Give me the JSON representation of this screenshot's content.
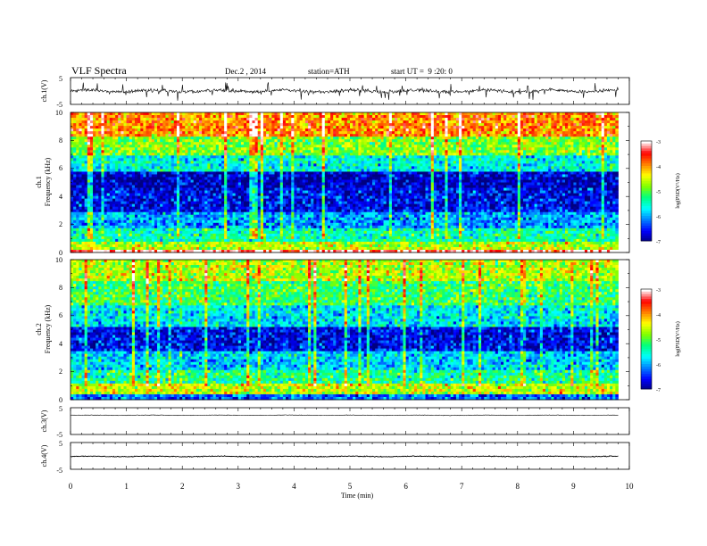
{
  "header": {
    "title": "VLF Spectra",
    "date": "Dec.2 , 2014",
    "station": "station=ATH",
    "start": "start UT =  9 :20: 0"
  },
  "chart_data": [
    {
      "type": "line",
      "panel": "ch1-waveform",
      "ylabel": "ch.1(V)",
      "ylim": [
        -5,
        5
      ],
      "ytick_labels": [
        "5",
        "-5"
      ],
      "xlim": [
        0,
        10
      ],
      "data_extent_min": 9.8,
      "signal_level_v": 0.0,
      "noise_amplitude_v": 1.0,
      "spike_amplitude_v": 3.0
    },
    {
      "type": "heatmap",
      "panel": "ch1-spectrogram",
      "ylabel": "ch.1\nFrequency (kHz)",
      "ylabel_line1": "ch.1",
      "ylabel_line2": "Frequency (kHz)",
      "ylim": [
        0,
        10
      ],
      "ytick_labels": [
        "0",
        "2",
        "4",
        "6",
        "8",
        "10"
      ],
      "xlim": [
        0,
        10
      ],
      "data_extent_min": 9.8,
      "colorbar": {
        "label": "log(PSD(V²/Hz)",
        "range": [
          -7,
          -3
        ],
        "tick_labels": [
          "-3",
          "-4",
          "-5",
          "-6",
          "-7"
        ]
      },
      "bands_khz": [
        {
          "from": 0,
          "to": 0.2,
          "log_psd": -3.2
        },
        {
          "from": 0.2,
          "to": 0.8,
          "log_psd": -4.6
        },
        {
          "from": 0.8,
          "to": 1.7,
          "log_psd": -5.4
        },
        {
          "from": 1.7,
          "to": 2.8,
          "log_psd": -6.0
        },
        {
          "from": 2.8,
          "to": 4.6,
          "log_psd": -6.6
        },
        {
          "from": 4.6,
          "to": 5.8,
          "log_psd": -6.8
        },
        {
          "from": 5.8,
          "to": 7.0,
          "log_psd": -5.6
        },
        {
          "from": 7.0,
          "to": 8.3,
          "log_psd": -4.8
        },
        {
          "from": 8.3,
          "to": 10,
          "log_psd": -3.9
        }
      ]
    },
    {
      "type": "heatmap",
      "panel": "ch2-spectrogram",
      "ylabel": "ch.2\nFrequency (kHz)",
      "ylabel_line1": "ch.2",
      "ylabel_line2": "Frequency (kHz)",
      "ylim": [
        0,
        10
      ],
      "ytick_labels": [
        "0",
        "2",
        "4",
        "6",
        "8",
        "10"
      ],
      "xlim": [
        0,
        10
      ],
      "data_extent_min": 9.8,
      "colorbar": {
        "label": "log(PSD(V²/Hz)",
        "range": [
          -7,
          -3
        ],
        "tick_labels": [
          "-3",
          "-4",
          "-5",
          "-6",
          "-7"
        ]
      },
      "bands_khz": [
        {
          "from": 0,
          "to": 0.3,
          "log_psd": -6.2
        },
        {
          "from": 0.3,
          "to": 1.2,
          "log_psd": -4.5
        },
        {
          "from": 1.2,
          "to": 2.2,
          "log_psd": -5.3
        },
        {
          "from": 2.2,
          "to": 3.4,
          "log_psd": -5.8
        },
        {
          "from": 3.4,
          "to": 5.2,
          "log_psd": -6.6
        },
        {
          "from": 5.2,
          "to": 6.8,
          "log_psd": -5.7
        },
        {
          "from": 6.8,
          "to": 8.4,
          "log_psd": -5.1
        },
        {
          "from": 8.4,
          "to": 10,
          "log_psd": -4.6
        }
      ]
    },
    {
      "type": "line",
      "panel": "ch3-waveform",
      "ylabel": "ch.3(V)",
      "ylim": [
        -5,
        5
      ],
      "ytick_labels": [
        "5",
        "-5"
      ],
      "xlim": [
        0,
        10
      ],
      "data_extent_min": 9.8,
      "signal_level_v": 2.2,
      "noise_amplitude_v": 0.15
    },
    {
      "type": "line",
      "panel": "ch4-waveform",
      "ylabel": "ch.4(V)",
      "ylim": [
        -5,
        5
      ],
      "ytick_labels": [
        "5",
        "-5"
      ],
      "xlim": [
        0,
        10
      ],
      "data_extent_min": 9.8,
      "signal_level_v": -0.2,
      "noise_amplitude_v": 0.25,
      "xlabel": "Time (min)",
      "xtick_labels": [
        "0",
        "1",
        "2",
        "3",
        "4",
        "5",
        "6",
        "7",
        "8",
        "9",
        "10"
      ]
    }
  ],
  "colors": {
    "colormap": [
      "#000080",
      "#0000ff",
      "#0080ff",
      "#00ffff",
      "#00ff80",
      "#80ff00",
      "#ffff00",
      "#ff8000",
      "#ff0000",
      "#ffffff"
    ],
    "frame": "#000000",
    "trace": "#000000"
  }
}
